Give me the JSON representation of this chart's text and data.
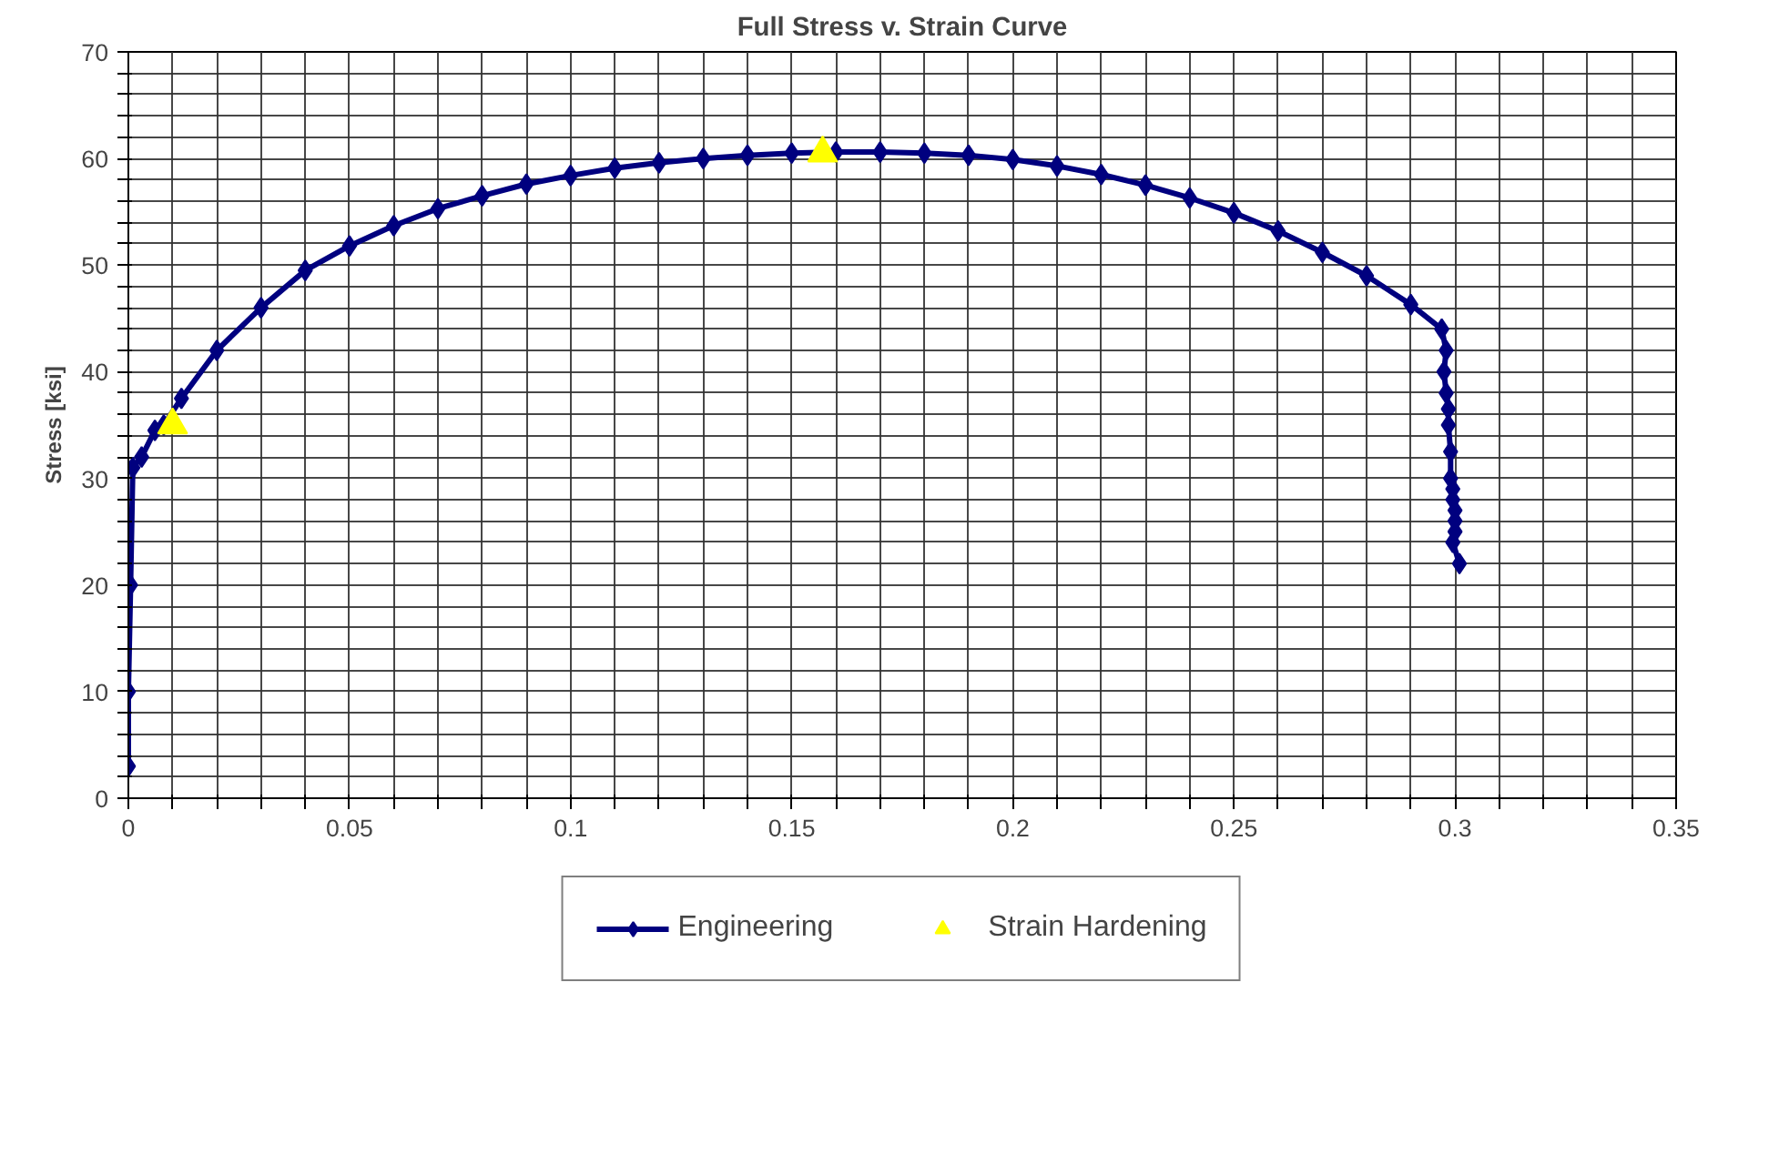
{
  "chart_data": {
    "type": "line",
    "title": "Full Stress v. Strain Curve",
    "ylabel": "Stress [ksi]",
    "xlim": [
      0,
      0.35
    ],
    "ylim": [
      0,
      70
    ],
    "xticks": [
      0,
      {
        "value": 0.01,
        "label": null
      },
      {
        "value": 0.02,
        "label": null
      },
      {
        "value": 0.03,
        "label": null
      },
      {
        "value": 0.04,
        "label": null
      },
      0.05,
      {
        "value": 0.06,
        "label": null
      },
      {
        "value": 0.07,
        "label": null
      },
      {
        "value": 0.08,
        "label": null
      },
      {
        "value": 0.09,
        "label": null
      },
      0.1,
      {
        "value": 0.11,
        "label": null
      },
      {
        "value": 0.12,
        "label": null
      },
      {
        "value": 0.13,
        "label": null
      },
      {
        "value": 0.14,
        "label": null
      },
      0.15,
      {
        "value": 0.16,
        "label": null
      },
      {
        "value": 0.17,
        "label": null
      },
      {
        "value": 0.18,
        "label": null
      },
      {
        "value": 0.19,
        "label": null
      },
      0.2,
      {
        "value": 0.21,
        "label": null
      },
      {
        "value": 0.22,
        "label": null
      },
      {
        "value": 0.23,
        "label": null
      },
      {
        "value": 0.24,
        "label": null
      },
      0.25,
      {
        "value": 0.26,
        "label": null
      },
      {
        "value": 0.27,
        "label": null
      },
      {
        "value": 0.28,
        "label": null
      },
      {
        "value": 0.29,
        "label": null
      },
      0.3,
      {
        "value": 0.31,
        "label": null
      },
      {
        "value": 0.32,
        "label": null
      },
      {
        "value": 0.33,
        "label": null
      },
      {
        "value": 0.34,
        "label": null
      },
      0.35
    ],
    "yticks": [
      0,
      {
        "value": 2,
        "label": null
      },
      {
        "value": 4,
        "label": null
      },
      {
        "value": 6,
        "label": null
      },
      {
        "value": 8,
        "label": null
      },
      10,
      {
        "value": 12,
        "label": null
      },
      {
        "value": 14,
        "label": null
      },
      {
        "value": 16,
        "label": null
      },
      {
        "value": 18,
        "label": null
      },
      20,
      {
        "value": 22,
        "label": null
      },
      {
        "value": 24,
        "label": null
      },
      {
        "value": 26,
        "label": null
      },
      {
        "value": 28,
        "label": null
      },
      30,
      {
        "value": 32,
        "label": null
      },
      {
        "value": 34,
        "label": null
      },
      {
        "value": 36,
        "label": null
      },
      {
        "value": 38,
        "label": null
      },
      40,
      {
        "value": 42,
        "label": null
      },
      {
        "value": 44,
        "label": null
      },
      {
        "value": 46,
        "label": null
      },
      {
        "value": 48,
        "label": null
      },
      50,
      {
        "value": 52,
        "label": null
      },
      {
        "value": 54,
        "label": null
      },
      {
        "value": 56,
        "label": null
      },
      {
        "value": 58,
        "label": null
      },
      60,
      {
        "value": 62,
        "label": null
      },
      {
        "value": 64,
        "label": null
      },
      {
        "value": 66,
        "label": null
      },
      {
        "value": 68,
        "label": null
      },
      70
    ],
    "grid": true,
    "legend": "bottom",
    "series": [
      {
        "name": "Engineering",
        "marker": "diamond",
        "color": "#00007f",
        "x": [
          0,
          0,
          0.0005,
          0.001,
          0.003,
          0.006,
          0.008,
          0.012,
          0.02,
          0.03,
          0.04,
          0.05,
          0.06,
          0.07,
          0.08,
          0.09,
          0.1,
          0.11,
          0.12,
          0.13,
          0.14,
          0.15,
          0.16,
          0.17,
          0.18,
          0.19,
          0.2,
          0.21,
          0.22,
          0.23,
          0.24,
          0.25,
          0.26,
          0.27,
          0.28,
          0.29,
          0.297,
          0.298,
          0.2975,
          0.298,
          0.2985,
          0.2985,
          0.299,
          0.299,
          0.2995,
          0.2995,
          0.3,
          0.3,
          0.3,
          0.2995,
          0.301
        ],
        "values": [
          3,
          10,
          20,
          31,
          32,
          34.5,
          35,
          37.5,
          42,
          46,
          49.5,
          51.8,
          53.7,
          55.3,
          56.5,
          57.6,
          58.4,
          59.1,
          59.6,
          60,
          60.3,
          60.5,
          60.6,
          60.6,
          60.5,
          60.3,
          59.9,
          59.3,
          58.5,
          57.5,
          56.3,
          54.9,
          53.2,
          51.2,
          49,
          46.3,
          44,
          42,
          40,
          38,
          36.5,
          35,
          32.5,
          30,
          29,
          28,
          27,
          26,
          25,
          24,
          22
        ]
      },
      {
        "name": "Strain Hardening",
        "type": "scatter",
        "marker": "triangle",
        "color": "#ffff00",
        "x": [
          0.01,
          0.157
        ],
        "values": [
          35,
          60.5
        ]
      }
    ]
  }
}
